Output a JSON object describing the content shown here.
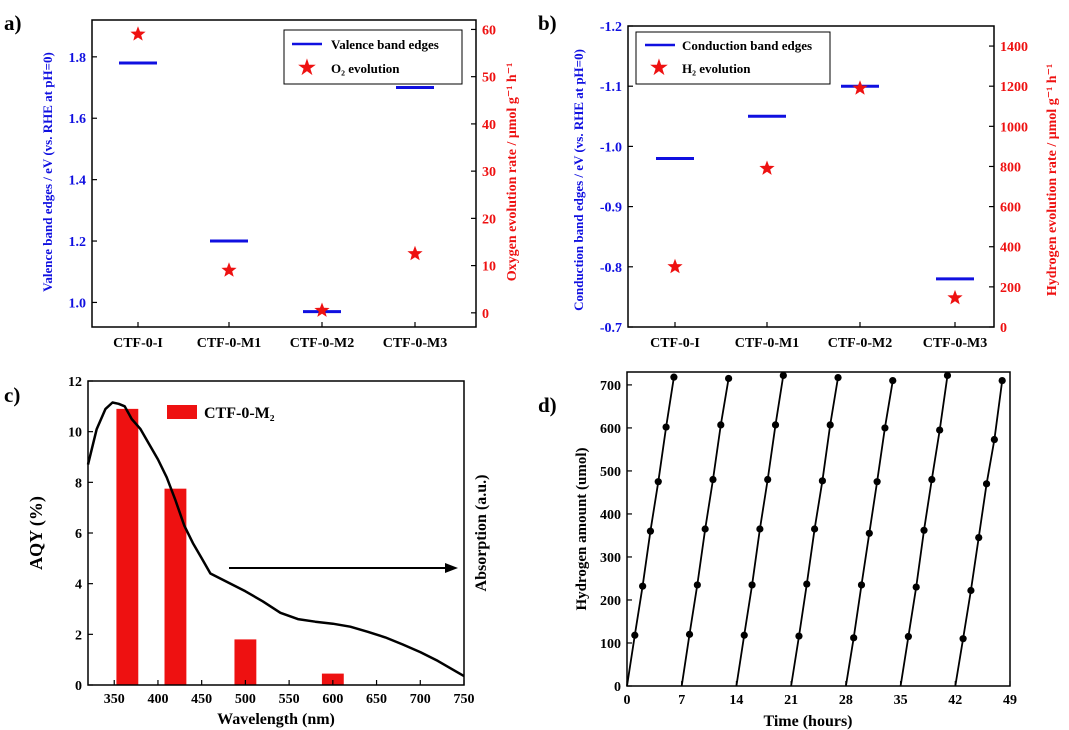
{
  "colors": {
    "blue": "#1010e0",
    "red": "#ee1111",
    "black": "#000000"
  },
  "chart_data": [
    {
      "panel": "a)",
      "type": "scatter",
      "categories": [
        "CTF-0-I",
        "CTF-0-M1",
        "CTF-0-M2",
        "CTF-0-M3"
      ],
      "ylabel": "Valence band edges / eV (vs. RHE at pH=0)",
      "ylim": [
        0.92,
        1.92
      ],
      "yticks": [
        1.0,
        1.2,
        1.4,
        1.6,
        1.8
      ],
      "y2label": "Oxygen evolution rate / μmol g⁻¹ h⁻¹",
      "y2lim": [
        -3,
        62
      ],
      "y2ticks": [
        0,
        10,
        20,
        30,
        40,
        50,
        60
      ],
      "legend": [
        "Valence band edges",
        "O₂ evolution"
      ],
      "legend_position": "top-right",
      "series": [
        {
          "name": "Valence band edges",
          "axis": "left",
          "marker": "dash",
          "values": [
            1.78,
            1.2,
            0.97,
            1.7
          ]
        },
        {
          "name": "O₂ evolution",
          "axis": "right",
          "marker": "star",
          "values": [
            59,
            9,
            0.5,
            12.5
          ]
        }
      ]
    },
    {
      "panel": "b)",
      "type": "scatter",
      "categories": [
        "CTF-0-I",
        "CTF-0-M1",
        "CTF-0-M2",
        "CTF-0-M3"
      ],
      "ylabel": "Conduction band edges / eV (vs. RHE at pH=0)",
      "ylim": [
        -0.7,
        -1.2
      ],
      "yticks": [
        -0.7,
        -0.8,
        -0.9,
        -1.0,
        -1.1,
        -1.2
      ],
      "y2label": "Hydrogen evolution rate / μmol g⁻¹ h⁻¹",
      "y2lim": [
        0,
        1500
      ],
      "y2ticks": [
        0,
        200,
        400,
        600,
        800,
        1000,
        1200,
        1400
      ],
      "legend": [
        "Conduction band edges",
        "H₂ evolution"
      ],
      "legend_position": "top-right",
      "series": [
        {
          "name": "Conduction band edges",
          "axis": "left",
          "marker": "dash",
          "values": [
            -0.98,
            -1.05,
            -1.1,
            -0.78
          ]
        },
        {
          "name": "H₂ evolution",
          "axis": "right",
          "marker": "star",
          "values": [
            300,
            790,
            1190,
            145
          ]
        }
      ]
    },
    {
      "panel": "c)",
      "type": "bar",
      "xlabel": "Wavelength (nm)",
      "xlim": [
        320,
        750
      ],
      "xticks": [
        350,
        400,
        450,
        500,
        550,
        600,
        650,
        700,
        750
      ],
      "ylabel": "AQY (%)",
      "ylim": [
        0,
        12
      ],
      "yticks": [
        0,
        2,
        4,
        6,
        8,
        10,
        12
      ],
      "y2label": "Absorption (a.u.)",
      "legend": [
        "CTF-0-M₂"
      ],
      "legend_position": "top-right",
      "bars": {
        "name": "CTF-0-M₂",
        "x": [
          365,
          420,
          500,
          600
        ],
        "values": [
          10.9,
          7.75,
          1.8,
          0.45
        ],
        "width": 25
      },
      "absorption": {
        "x": [
          320,
          330,
          340,
          348,
          355,
          362,
          370,
          380,
          390,
          400,
          410,
          420,
          430,
          440,
          450,
          460,
          480,
          500,
          520,
          540,
          560,
          580,
          600,
          620,
          640,
          660,
          680,
          700,
          720,
          740,
          750
        ],
        "y": [
          8.7,
          10.1,
          10.9,
          11.15,
          11.1,
          11.0,
          10.5,
          10.1,
          9.5,
          8.9,
          8.2,
          7.3,
          6.3,
          5.6,
          5.0,
          4.4,
          4.05,
          3.7,
          3.3,
          2.85,
          2.6,
          2.5,
          2.42,
          2.3,
          2.1,
          1.88,
          1.6,
          1.3,
          0.95,
          0.55,
          0.35
        ]
      }
    },
    {
      "panel": "d)",
      "type": "line",
      "xlabel": "Time (hours)",
      "xlim": [
        0,
        49
      ],
      "xticks": [
        0,
        7,
        14,
        21,
        28,
        35,
        42,
        49
      ],
      "ylabel": "Hydrogen amount (umol)",
      "ylim": [
        0,
        730
      ],
      "yticks": [
        0,
        100,
        200,
        300,
        400,
        500,
        600,
        700
      ],
      "cycles": [
        {
          "x": [
            0,
            1,
            2,
            3,
            4,
            5,
            6
          ],
          "y": [
            0,
            118,
            232,
            360,
            475,
            602,
            718
          ]
        },
        {
          "x": [
            7,
            8,
            9,
            10,
            11,
            12,
            13
          ],
          "y": [
            0,
            120,
            235,
            365,
            480,
            607,
            715
          ]
        },
        {
          "x": [
            14,
            15,
            16,
            17,
            18,
            19,
            20
          ],
          "y": [
            0,
            118,
            235,
            365,
            480,
            607,
            722
          ]
        },
        {
          "x": [
            21,
            22,
            23,
            24,
            25,
            26,
            27
          ],
          "y": [
            0,
            116,
            237,
            365,
            477,
            607,
            717
          ]
        },
        {
          "x": [
            28,
            29,
            30,
            31,
            32,
            33,
            34
          ],
          "y": [
            0,
            112,
            235,
            355,
            475,
            600,
            710
          ]
        },
        {
          "x": [
            35,
            36,
            37,
            38,
            39,
            40,
            41
          ],
          "y": [
            0,
            115,
            230,
            362,
            480,
            595,
            722
          ]
        },
        {
          "x": [
            42,
            43,
            44,
            45,
            46,
            47,
            48
          ],
          "y": [
            0,
            110,
            222,
            345,
            470,
            573,
            710
          ]
        }
      ]
    }
  ]
}
